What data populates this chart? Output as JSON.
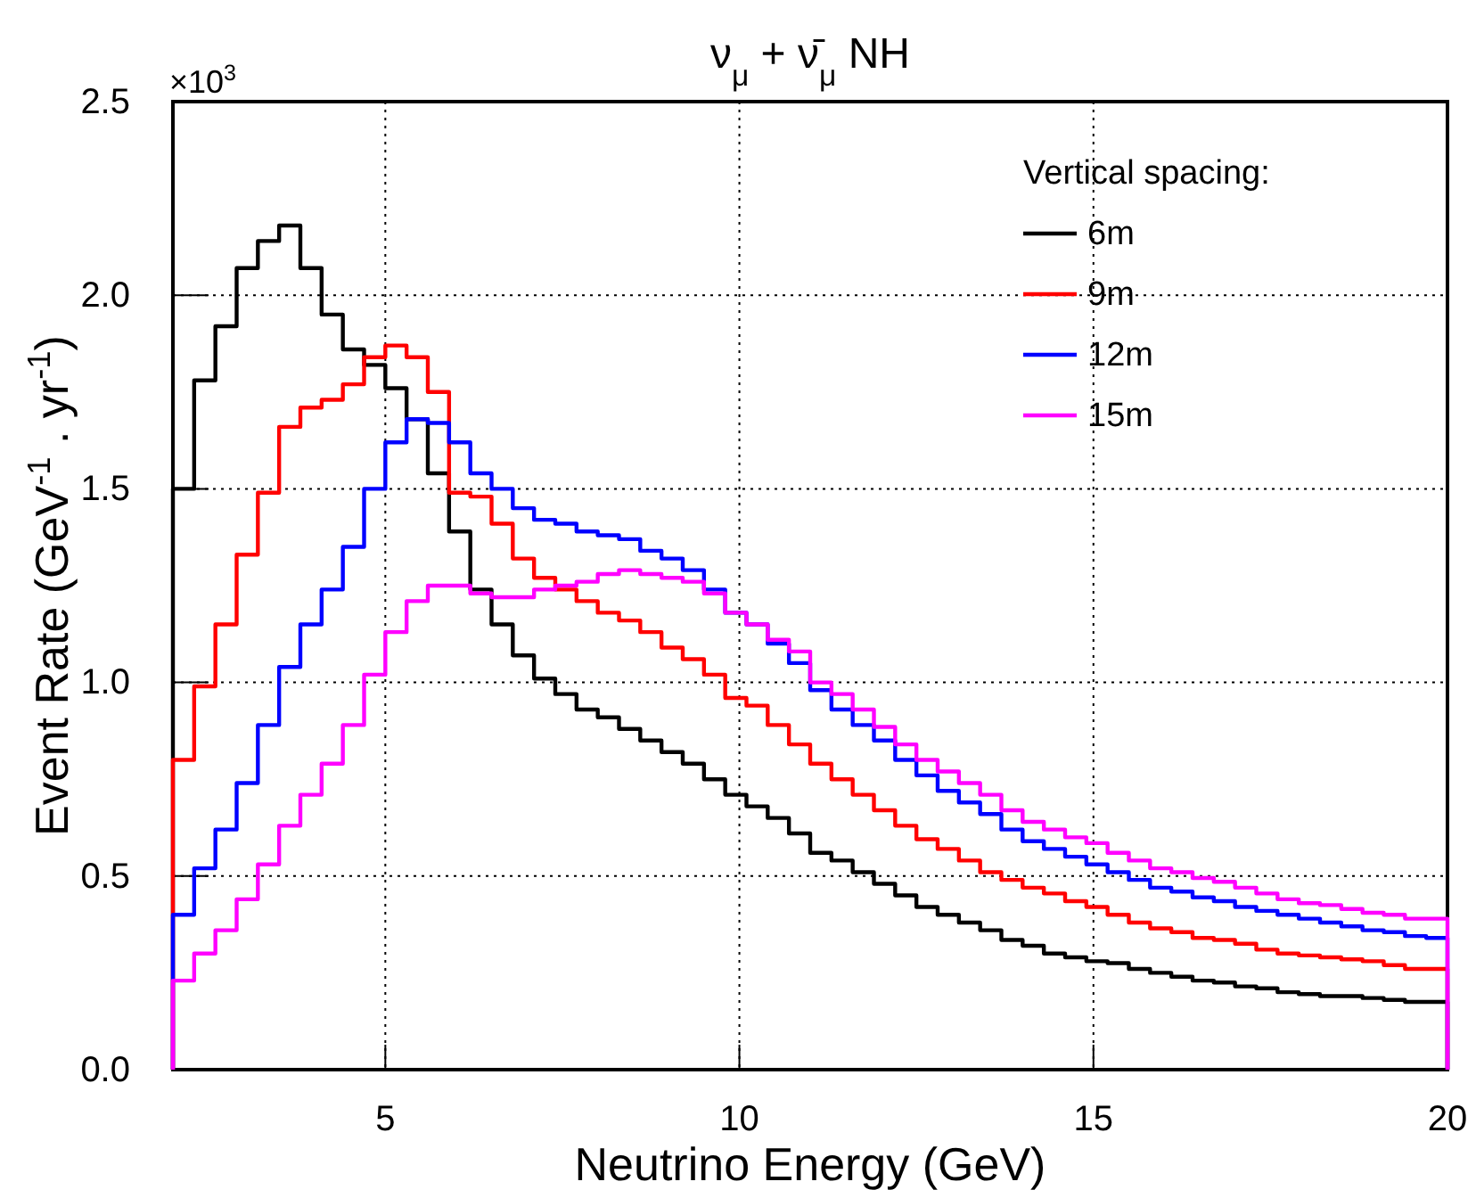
{
  "chart_data": {
    "type": "histogram",
    "title": "ν$_{μ}$ + ν̄$_{μ}$   NH",
    "xlabel": "Neutrino Energy (GeV)",
    "ylabel": "Event Rate (GeV$^{-1}$ . yr$^{-1}$)",
    "legend_title": "Vertical spacing:",
    "annotations": [
      "×10$^{3}$"
    ],
    "bins": [
      2,
      2.3,
      2.6,
      2.9,
      3.2,
      3.5,
      3.8,
      4.1,
      4.4,
      4.7,
      5,
      5.3,
      5.6,
      5.9,
      6.2,
      6.5,
      6.8,
      7.1,
      7.4,
      7.7,
      8,
      8.3,
      8.6,
      8.9,
      9.2,
      9.5,
      9.8,
      10.1,
      10.4,
      10.7,
      11,
      11.3,
      11.6,
      11.9,
      12.2,
      12.5,
      12.8,
      13.1,
      13.4,
      13.7,
      14,
      14.3,
      14.6,
      14.9,
      15.2,
      15.5,
      15.8,
      16.1,
      16.4,
      16.7,
      17,
      17.3,
      17.6,
      17.9,
      18.2,
      18.5,
      18.8,
      19.1,
      19.4,
      19.7,
      20
    ],
    "series": [
      {
        "name": "6m",
        "color": "#000000",
        "values": [
          1.5,
          1.78,
          1.92,
          2.07,
          2.14,
          2.18,
          2.07,
          1.95,
          1.86,
          1.82,
          1.76,
          1.68,
          1.54,
          1.39,
          1.24,
          1.15,
          1.07,
          1.01,
          0.97,
          0.93,
          0.91,
          0.88,
          0.85,
          0.82,
          0.79,
          0.75,
          0.71,
          0.68,
          0.65,
          0.61,
          0.56,
          0.54,
          0.51,
          0.48,
          0.45,
          0.42,
          0.4,
          0.38,
          0.36,
          0.335,
          0.32,
          0.3,
          0.29,
          0.28,
          0.275,
          0.26,
          0.25,
          0.24,
          0.23,
          0.225,
          0.215,
          0.21,
          0.2,
          0.195,
          0.19,
          0.19,
          0.185,
          0.18,
          0.175,
          0.175
        ]
      },
      {
        "name": "9m",
        "color": "#ff0000",
        "values": [
          0.8,
          0.99,
          1.15,
          1.33,
          1.49,
          1.66,
          1.71,
          1.73,
          1.77,
          1.84,
          1.87,
          1.84,
          1.75,
          1.49,
          1.48,
          1.41,
          1.32,
          1.27,
          1.24,
          1.21,
          1.18,
          1.16,
          1.13,
          1.09,
          1.06,
          1.02,
          0.96,
          0.94,
          0.89,
          0.84,
          0.79,
          0.75,
          0.71,
          0.67,
          0.63,
          0.595,
          0.57,
          0.54,
          0.51,
          0.49,
          0.47,
          0.455,
          0.435,
          0.42,
          0.4,
          0.38,
          0.365,
          0.355,
          0.34,
          0.335,
          0.325,
          0.31,
          0.3,
          0.295,
          0.29,
          0.285,
          0.28,
          0.27,
          0.26,
          0.26
        ]
      },
      {
        "name": "12m",
        "color": "#0000ff",
        "values": [
          0.4,
          0.52,
          0.62,
          0.74,
          0.89,
          1.04,
          1.15,
          1.24,
          1.35,
          1.5,
          1.62,
          1.68,
          1.67,
          1.62,
          1.54,
          1.5,
          1.45,
          1.42,
          1.41,
          1.39,
          1.38,
          1.37,
          1.34,
          1.32,
          1.29,
          1.24,
          1.18,
          1.15,
          1.1,
          1.05,
          0.98,
          0.93,
          0.89,
          0.85,
          0.8,
          0.76,
          0.72,
          0.69,
          0.66,
          0.62,
          0.59,
          0.57,
          0.55,
          0.53,
          0.51,
          0.49,
          0.47,
          0.46,
          0.445,
          0.435,
          0.42,
          0.41,
          0.4,
          0.39,
          0.38,
          0.37,
          0.36,
          0.355,
          0.345,
          0.34
        ]
      },
      {
        "name": "15m",
        "color": "#ff00ff",
        "values": [
          0.23,
          0.3,
          0.36,
          0.44,
          0.53,
          0.63,
          0.71,
          0.79,
          0.89,
          1.02,
          1.13,
          1.21,
          1.25,
          1.25,
          1.23,
          1.22,
          1.22,
          1.24,
          1.25,
          1.26,
          1.28,
          1.29,
          1.28,
          1.27,
          1.26,
          1.23,
          1.18,
          1.15,
          1.11,
          1.08,
          1.0,
          0.97,
          0.93,
          0.885,
          0.84,
          0.8,
          0.77,
          0.74,
          0.71,
          0.67,
          0.64,
          0.62,
          0.6,
          0.585,
          0.56,
          0.54,
          0.52,
          0.51,
          0.495,
          0.485,
          0.47,
          0.455,
          0.44,
          0.43,
          0.425,
          0.415,
          0.405,
          0.4,
          0.39,
          0.39
        ]
      }
    ],
    "xlim": [
      2,
      20
    ],
    "ylim": [
      0,
      2.5
    ],
    "xticks": [
      5,
      10,
      15,
      20
    ],
    "yticks": [
      {
        "value": 0,
        "label": "0.0"
      },
      {
        "value": 0.5,
        "label": "0.5"
      },
      {
        "value": 1,
        "label": "1.0"
      },
      {
        "value": 1.5,
        "label": "1.5"
      },
      {
        "value": 2,
        "label": "2.0"
      },
      {
        "value": 2.5,
        "label": "2.5"
      }
    ],
    "grid": true,
    "legend": "top right"
  }
}
